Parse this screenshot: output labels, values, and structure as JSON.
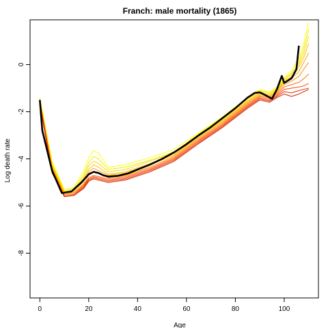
{
  "chart_data": {
    "type": "line",
    "title": "Franch: male mortality (1865)",
    "xlabel": "Age",
    "ylabel": "Log death rate",
    "xlim": [
      -4,
      114
    ],
    "ylim": [
      -9.9,
      1.9
    ],
    "xticks": [
      0,
      20,
      40,
      60,
      80,
      100
    ],
    "yticks": [
      0,
      -2,
      -4,
      -6,
      -8
    ],
    "ytick_labels": [
      "0",
      "-2",
      "-4",
      "-6",
      "-8"
    ],
    "grid": false,
    "legend": "none",
    "highlight_color": "#000000",
    "background_series_palette": [
      "#FFFF00",
      "#E8F000",
      "#FFD700",
      "#FFC000",
      "#FFA500",
      "#FF8C00",
      "#FF6A00",
      "#FF4500",
      "#E03000",
      "#CC2200"
    ],
    "highlight_series": {
      "x": [
        0,
        1,
        5,
        9,
        13,
        17,
        20,
        22,
        24,
        26,
        28,
        32,
        36,
        40,
        45,
        50,
        55,
        60,
        65,
        70,
        75,
        80,
        85,
        88,
        90,
        92,
        95,
        97,
        99,
        100,
        103,
        105,
        106
      ],
      "y": [
        -1.5,
        -2.8,
        -4.5,
        -5.45,
        -5.38,
        -5.0,
        -4.65,
        -4.55,
        -4.6,
        -4.7,
        -4.75,
        -4.72,
        -4.62,
        -4.45,
        -4.25,
        -4.0,
        -3.72,
        -3.38,
        -3.0,
        -2.65,
        -2.25,
        -1.85,
        -1.4,
        -1.2,
        -1.18,
        -1.28,
        -1.45,
        -1.05,
        -0.48,
        -0.78,
        -0.58,
        -0.2,
        0.8
      ]
    },
    "background_series": [
      {
        "x": [
          0,
          5,
          10,
          14,
          18,
          20,
          22,
          24,
          28,
          35,
          45,
          55,
          65,
          75,
          85,
          90,
          94,
          97,
          100,
          103,
          106,
          108,
          110
        ],
        "y": [
          -1.4,
          -4.1,
          -5.3,
          -5.2,
          -4.5,
          -3.95,
          -3.65,
          -3.75,
          -4.35,
          -4.25,
          -3.95,
          -3.6,
          -2.9,
          -2.2,
          -1.4,
          -1.05,
          -1.15,
          -0.95,
          -0.55,
          -0.25,
          0.25,
          0.9,
          1.8
        ]
      },
      {
        "x": [
          0,
          5,
          10,
          14,
          18,
          20,
          22,
          24,
          28,
          35,
          45,
          55,
          65,
          75,
          85,
          90,
          94,
          97,
          100,
          103,
          106,
          108,
          110
        ],
        "y": [
          -1.5,
          -4.2,
          -5.35,
          -5.25,
          -4.65,
          -4.15,
          -3.9,
          -4.0,
          -4.45,
          -4.35,
          -4.05,
          -3.7,
          -2.95,
          -2.25,
          -1.45,
          -1.1,
          -1.2,
          -1.0,
          -0.6,
          -0.35,
          0.1,
          0.7,
          1.5
        ]
      },
      {
        "x": [
          0,
          5,
          10,
          14,
          18,
          20,
          22,
          24,
          28,
          35,
          45,
          55,
          65,
          75,
          85,
          90,
          94,
          97,
          100,
          103,
          106,
          108,
          110
        ],
        "y": [
          -1.45,
          -4.25,
          -5.4,
          -5.3,
          -4.75,
          -4.3,
          -4.1,
          -4.2,
          -4.55,
          -4.45,
          -4.1,
          -3.75,
          -3.0,
          -2.3,
          -1.5,
          -1.15,
          -1.25,
          -1.05,
          -0.65,
          -0.4,
          0.0,
          0.5,
          1.2
        ]
      },
      {
        "x": [
          0,
          5,
          10,
          14,
          18,
          20,
          22,
          24,
          28,
          35,
          45,
          55,
          65,
          75,
          85,
          90,
          94,
          97,
          100,
          103,
          106,
          108,
          110
        ],
        "y": [
          -1.55,
          -4.3,
          -5.45,
          -5.35,
          -4.85,
          -4.45,
          -4.25,
          -4.35,
          -4.65,
          -4.55,
          -4.2,
          -3.8,
          -3.05,
          -2.35,
          -1.55,
          -1.2,
          -1.3,
          -1.1,
          -0.7,
          -0.5,
          -0.1,
          0.3,
          0.9
        ]
      },
      {
        "x": [
          0,
          5,
          10,
          14,
          18,
          20,
          22,
          24,
          28,
          35,
          45,
          55,
          65,
          75,
          85,
          90,
          94,
          97,
          100,
          103,
          106,
          108,
          110
        ],
        "y": [
          -1.5,
          -4.35,
          -5.5,
          -5.4,
          -4.95,
          -4.55,
          -4.4,
          -4.5,
          -4.7,
          -4.6,
          -4.25,
          -3.85,
          -3.1,
          -2.4,
          -1.6,
          -1.25,
          -1.35,
          -1.15,
          -0.75,
          -0.6,
          -0.3,
          0.1,
          0.5
        ]
      },
      {
        "x": [
          0,
          5,
          10,
          14,
          18,
          20,
          22,
          24,
          28,
          35,
          45,
          55,
          65,
          75,
          85,
          90,
          94,
          97,
          100,
          103,
          106,
          108,
          110
        ],
        "y": [
          -1.6,
          -4.4,
          -5.5,
          -5.45,
          -5.05,
          -4.7,
          -4.55,
          -4.6,
          -4.8,
          -4.7,
          -4.35,
          -3.9,
          -3.15,
          -2.45,
          -1.65,
          -1.3,
          -1.4,
          -1.2,
          -0.85,
          -0.7,
          -0.5,
          -0.2,
          0.1
        ]
      },
      {
        "x": [
          0,
          5,
          10,
          14,
          18,
          20,
          22,
          24,
          28,
          35,
          45,
          55,
          65,
          75,
          85,
          90,
          94,
          97,
          100,
          103,
          106,
          108,
          110
        ],
        "y": [
          -1.55,
          -4.45,
          -5.55,
          -5.5,
          -5.1,
          -4.8,
          -4.7,
          -4.75,
          -4.85,
          -4.75,
          -4.4,
          -3.95,
          -3.2,
          -2.5,
          -1.7,
          -1.35,
          -1.45,
          -1.25,
          -0.95,
          -0.85,
          -0.75,
          -0.6,
          -0.4
        ]
      },
      {
        "x": [
          0,
          5,
          10,
          14,
          18,
          20,
          22,
          24,
          28,
          35,
          45,
          55,
          65,
          75,
          85,
          90,
          94,
          97,
          100,
          103,
          106,
          108,
          110
        ],
        "y": [
          -1.65,
          -4.5,
          -5.55,
          -5.5,
          -5.15,
          -4.85,
          -4.75,
          -4.8,
          -4.9,
          -4.8,
          -4.45,
          -4.0,
          -3.25,
          -2.55,
          -1.75,
          -1.4,
          -1.5,
          -1.3,
          -1.05,
          -1.0,
          -0.95,
          -0.9,
          -0.8
        ]
      },
      {
        "x": [
          0,
          5,
          10,
          14,
          18,
          20,
          22,
          24,
          28,
          35,
          45,
          55,
          65,
          75,
          85,
          90,
          94,
          97,
          100,
          103,
          106,
          108,
          110
        ],
        "y": [
          -1.6,
          -4.55,
          -5.6,
          -5.55,
          -5.2,
          -4.9,
          -4.8,
          -4.85,
          -4.95,
          -4.85,
          -4.5,
          -4.05,
          -3.3,
          -2.6,
          -1.8,
          -1.45,
          -1.55,
          -1.35,
          -1.15,
          -1.2,
          -1.1,
          -1.05,
          -1.0
        ]
      },
      {
        "x": [
          0,
          5,
          10,
          14,
          18,
          20,
          22,
          24,
          28,
          35,
          45,
          55,
          65,
          75,
          85,
          90,
          94,
          97,
          100,
          103,
          106,
          108,
          110
        ],
        "y": [
          -1.7,
          -4.6,
          -5.6,
          -5.55,
          -5.25,
          -4.95,
          -4.85,
          -4.9,
          -5.0,
          -4.9,
          -4.55,
          -4.1,
          -3.35,
          -2.65,
          -1.85,
          -1.5,
          -1.6,
          -1.4,
          -1.25,
          -1.35,
          -1.25,
          -1.15,
          -1.05
        ]
      }
    ]
  }
}
